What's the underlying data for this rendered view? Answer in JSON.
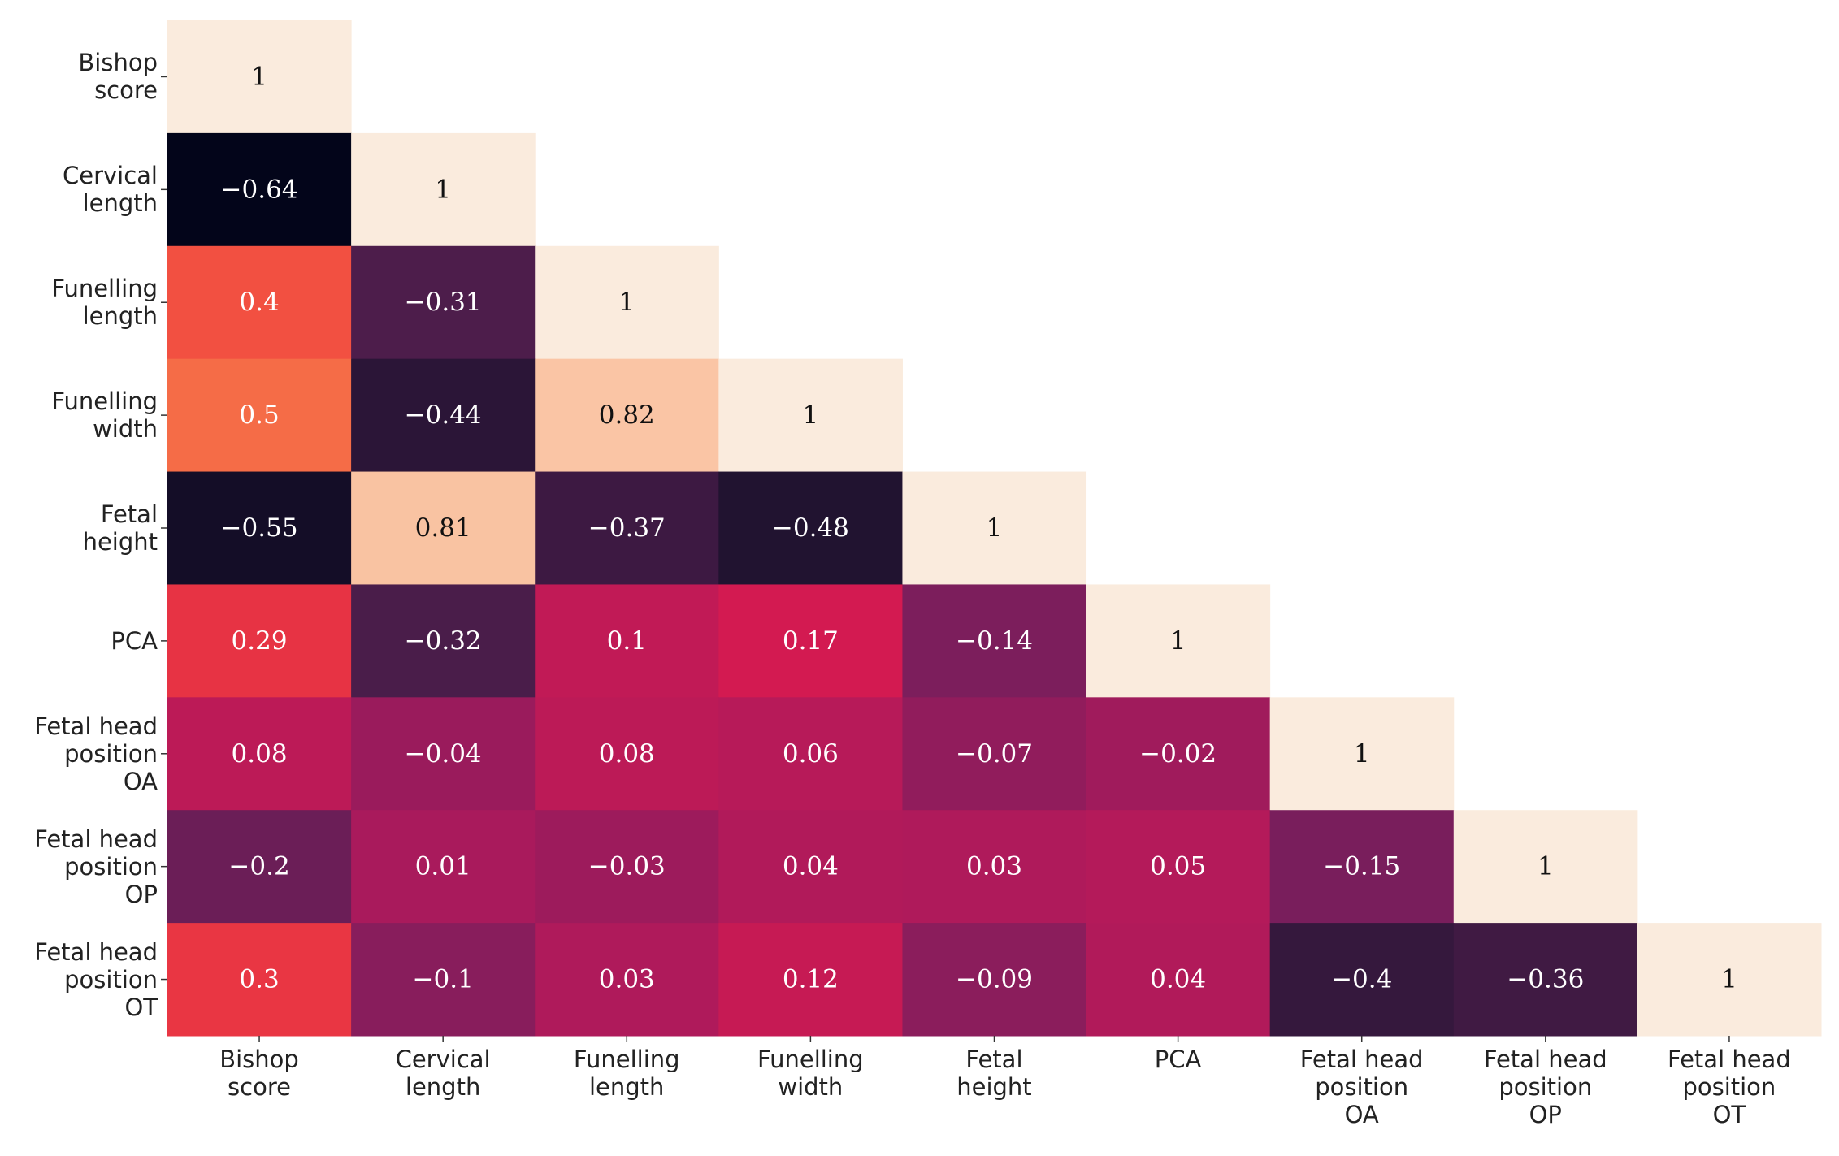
{
  "chart_data": {
    "type": "heatmap",
    "categories": [
      "Bishop\nscore",
      "Cervical\nlength",
      "Funelling\nlength",
      "Funelling\nwidth",
      "Fetal\nheight",
      "PCA",
      "Fetal head\nposition\nOA",
      "Fetal head\nposition\nOP",
      "Fetal head\nposition\nOT"
    ],
    "values": [
      [
        1,
        null,
        null,
        null,
        null,
        null,
        null,
        null,
        null
      ],
      [
        -0.64,
        1,
        null,
        null,
        null,
        null,
        null,
        null,
        null
      ],
      [
        0.4,
        -0.31,
        1,
        null,
        null,
        null,
        null,
        null,
        null
      ],
      [
        0.5,
        -0.44,
        0.82,
        1,
        null,
        null,
        null,
        null,
        null
      ],
      [
        -0.55,
        0.81,
        -0.37,
        -0.48,
        1,
        null,
        null,
        null,
        null
      ],
      [
        0.29,
        -0.32,
        0.1,
        0.17,
        -0.14,
        1,
        null,
        null,
        null
      ],
      [
        0.08,
        -0.04,
        0.08,
        0.06,
        -0.07,
        -0.02,
        1,
        null,
        null
      ],
      [
        -0.2,
        0.01,
        -0.03,
        0.04,
        0.03,
        0.05,
        -0.15,
        1,
        null
      ],
      [
        0.3,
        -0.1,
        0.03,
        0.12,
        -0.09,
        0.04,
        -0.4,
        -0.36,
        1
      ]
    ],
    "value_labels": [
      [
        "1",
        null,
        null,
        null,
        null,
        null,
        null,
        null,
        null
      ],
      [
        "−0.64",
        "1",
        null,
        null,
        null,
        null,
        null,
        null,
        null
      ],
      [
        "0.4",
        "−0.31",
        "1",
        null,
        null,
        null,
        null,
        null,
        null
      ],
      [
        "0.5",
        "−0.44",
        "0.82",
        "1",
        null,
        null,
        null,
        null,
        null
      ],
      [
        "−0.55",
        "0.81",
        "−0.37",
        "−0.48",
        "1",
        null,
        null,
        null,
        null
      ],
      [
        "0.29",
        "−0.32",
        "0.1",
        "0.17",
        "−0.14",
        "1",
        null,
        null,
        null
      ],
      [
        "0.08",
        "−0.04",
        "0.08",
        "0.06",
        "−0.07",
        "−0.02",
        "1",
        null,
        null
      ],
      [
        "−0.2",
        "0.01",
        "−0.03",
        "0.04",
        "0.03",
        "0.05",
        "−0.15",
        "1",
        null
      ],
      [
        "0.3",
        "−0.1",
        "0.03",
        "0.12",
        "−0.09",
        "0.04",
        "−0.4",
        "−0.36",
        "1"
      ]
    ],
    "colormap": "rocket"
  }
}
